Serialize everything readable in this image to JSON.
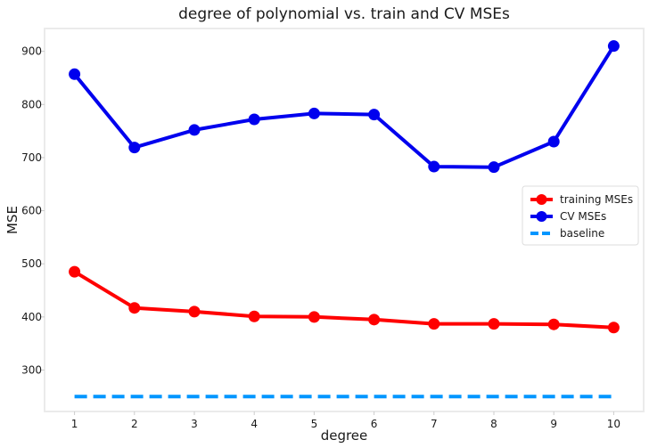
{
  "chart_data": {
    "type": "line",
    "title": "degree of polynomial vs. train and CV MSEs",
    "xlabel": "degree",
    "ylabel": "MSE",
    "x": [
      1,
      2,
      3,
      4,
      5,
      6,
      7,
      8,
      9,
      10
    ],
    "x_ticks": [
      "1",
      "2",
      "3",
      "4",
      "5",
      "6",
      "7",
      "8",
      "9",
      "10"
    ],
    "y_ticks": [
      "300",
      "400",
      "500",
      "600",
      "700",
      "800",
      "900"
    ],
    "xlim": [
      0.5,
      10.5
    ],
    "ylim": [
      222,
      943
    ],
    "grid": false,
    "legend_position": "center-right",
    "series": [
      {
        "name": "training MSEs",
        "color": "#ff0000",
        "style": "solid",
        "marker": "circle",
        "values": [
          485,
          417,
          410,
          401,
          400,
          395,
          387,
          387,
          386,
          380
        ]
      },
      {
        "name": "CV MSEs",
        "color": "#0000ee",
        "style": "solid",
        "marker": "circle",
        "values": [
          857,
          719,
          752,
          772,
          783,
          781,
          683,
          682,
          730,
          910
        ]
      },
      {
        "name": "baseline",
        "color": "#0096ff",
        "style": "dashed",
        "marker": "none",
        "values": [
          250,
          250,
          250,
          250,
          250,
          250,
          250,
          250,
          250,
          250
        ]
      }
    ]
  }
}
